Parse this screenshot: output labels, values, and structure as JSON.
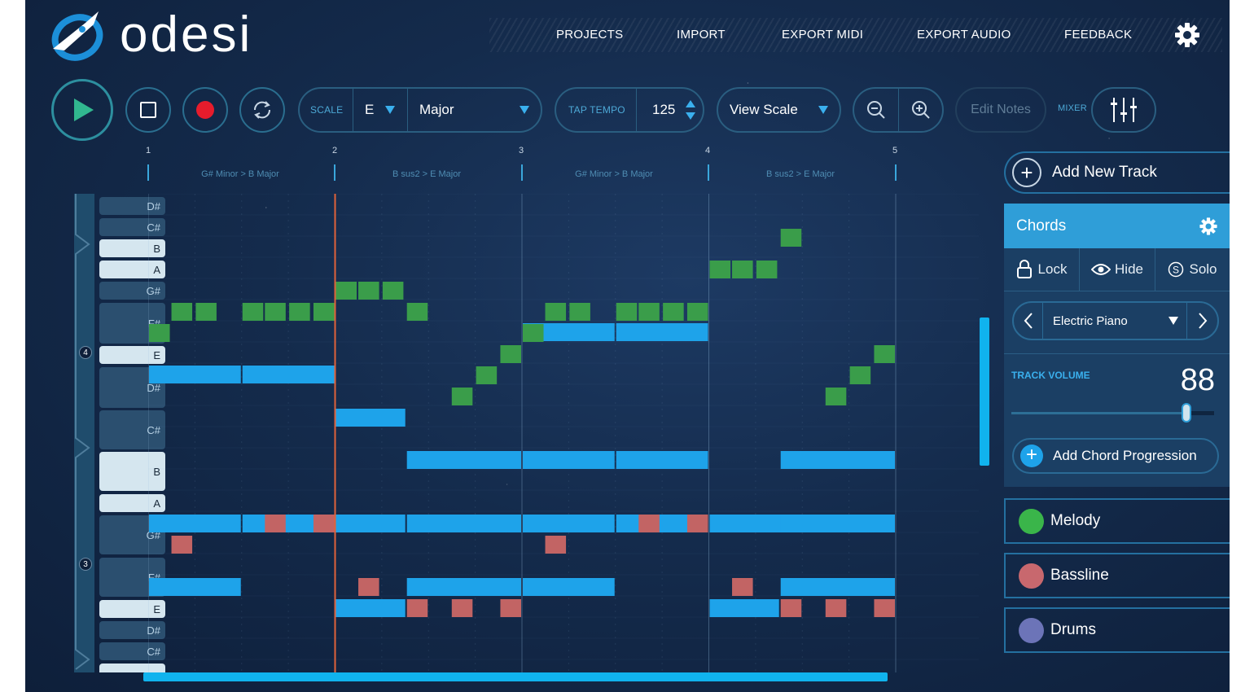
{
  "app": {
    "name": "odesi"
  },
  "nav": [
    "PROJECTS",
    "IMPORT",
    "EXPORT MIDI",
    "EXPORT AUDIO",
    "FEEDBACK"
  ],
  "toolbar": {
    "scale_label": "SCALE",
    "key": "E",
    "mode": "Major",
    "tap_tempo_label": "TAP TEMPO",
    "tempo": "125",
    "view_scale": "View Scale",
    "edit_notes": "Edit Notes",
    "mixer_label": "MIXER"
  },
  "ruler": {
    "bars": [
      "1",
      "2",
      "3",
      "4",
      "5"
    ],
    "chords": [
      "G# Minor > B Major",
      "B sus2 > E Major",
      "G# Minor > B Major",
      "B sus2 > E Major"
    ]
  },
  "piano": {
    "keys": [
      "D#",
      "C#",
      "B",
      "A",
      "G#",
      "F#",
      "E",
      "D#",
      "C#",
      "B",
      "A",
      "G#",
      "F#",
      "E",
      "D#",
      "C#"
    ],
    "octave_labels": [
      "4",
      "3"
    ]
  },
  "tracks": {
    "add_new": "Add New Track",
    "active": {
      "name": "Chords",
      "lock": "Lock",
      "hide": "Hide",
      "solo": "Solo",
      "instrument": "Electric Piano",
      "volume_label": "TRACK VOLUME",
      "volume": "88",
      "volume_fraction": 0.88,
      "add_progression": "Add Chord Progression"
    },
    "others": [
      {
        "name": "Melody",
        "color": "#3ab54a"
      },
      {
        "name": "Bassline",
        "color": "#c8686e"
      },
      {
        "name": "Drums",
        "color": "#6c74b8"
      }
    ]
  },
  "colors": {
    "accent": "#10b3ee",
    "chord_note": "#1ea3ea",
    "melody_note": "#3a9d4a",
    "bass_note": "#c26464",
    "playhead": "#e0623a"
  },
  "notes": {
    "chords": [
      [
        2.0,
        0,
        0.5
      ],
      [
        2.5,
        0,
        0.5
      ],
      [
        0,
        1,
        0.5
      ],
      [
        0.5,
        1,
        0.5
      ],
      [
        1.0,
        2,
        0.38
      ],
      [
        2.0,
        3,
        0.5
      ],
      [
        2.5,
        3,
        0.5
      ],
      [
        0,
        4,
        0.5
      ],
      [
        0.5,
        4,
        0.5
      ],
      [
        1.0,
        4,
        0.38
      ],
      [
        1.38,
        4,
        0.62
      ],
      [
        2.0,
        4,
        0.5
      ],
      [
        2.5,
        4,
        0.5
      ],
      [
        3.0,
        4,
        0.5
      ],
      [
        3.38,
        4,
        0.62
      ],
      [
        0,
        5,
        0.5
      ],
      [
        1.38,
        5,
        0.62
      ],
      [
        2.0,
        5,
        0.5
      ],
      [
        3.38,
        5,
        0.62
      ],
      [
        1.0,
        6,
        0.38
      ],
      [
        3.0,
        6,
        0.38
      ],
      [
        1.38,
        7,
        0.62
      ],
      [
        3.38,
        7,
        0.62
      ]
    ],
    "melody": [
      [
        0,
        0.0,
        0.12
      ],
      [
        0.12,
        1.0,
        0.12
      ],
      [
        0.25,
        1.0,
        0.12
      ],
      [
        0.5,
        1.0,
        0.12
      ],
      [
        0.62,
        1.0,
        0.12
      ],
      [
        0.75,
        1.0,
        0.12
      ],
      [
        0.88,
        1.0,
        0.12
      ],
      [
        1.0,
        2.0,
        0.12
      ],
      [
        1.12,
        2.0,
        0.12
      ],
      [
        1.25,
        2.0,
        0.12
      ],
      [
        1.38,
        1.0,
        0.12
      ],
      [
        1.62,
        -3.0,
        0.12
      ],
      [
        1.75,
        -2.0,
        0.12
      ],
      [
        1.88,
        -1.0,
        0.12
      ],
      [
        2.0,
        0.0,
        0.12
      ],
      [
        2.12,
        1.0,
        0.12
      ],
      [
        2.25,
        1.0,
        0.12
      ],
      [
        2.5,
        1.0,
        0.12
      ],
      [
        2.62,
        1.0,
        0.12
      ],
      [
        2.75,
        1.0,
        0.12
      ],
      [
        2.88,
        1.0,
        0.12
      ],
      [
        3.0,
        3.0,
        0.12
      ],
      [
        3.12,
        3.0,
        0.12
      ],
      [
        3.25,
        3.0,
        0.12
      ],
      [
        3.38,
        4.5,
        0.12
      ],
      [
        3.62,
        -3.0,
        0.12
      ],
      [
        3.75,
        -2.0,
        0.12
      ],
      [
        3.88,
        -1.0,
        0.12
      ]
    ],
    "bass": [
      [
        0.12,
        1,
        0.12
      ],
      [
        0.62,
        0,
        0.12
      ],
      [
        0.88,
        0,
        0.12
      ],
      [
        1.12,
        3,
        0.12
      ],
      [
        1.38,
        4,
        0.12
      ],
      [
        1.62,
        4,
        0.12
      ],
      [
        1.88,
        4,
        0.12
      ],
      [
        2.12,
        1,
        0.12
      ],
      [
        2.62,
        0,
        0.12
      ],
      [
        2.88,
        0,
        0.12
      ],
      [
        3.12,
        3,
        0.12
      ],
      [
        3.38,
        4,
        0.12
      ],
      [
        3.62,
        4,
        0.12
      ],
      [
        3.88,
        4,
        0.12
      ]
    ]
  }
}
